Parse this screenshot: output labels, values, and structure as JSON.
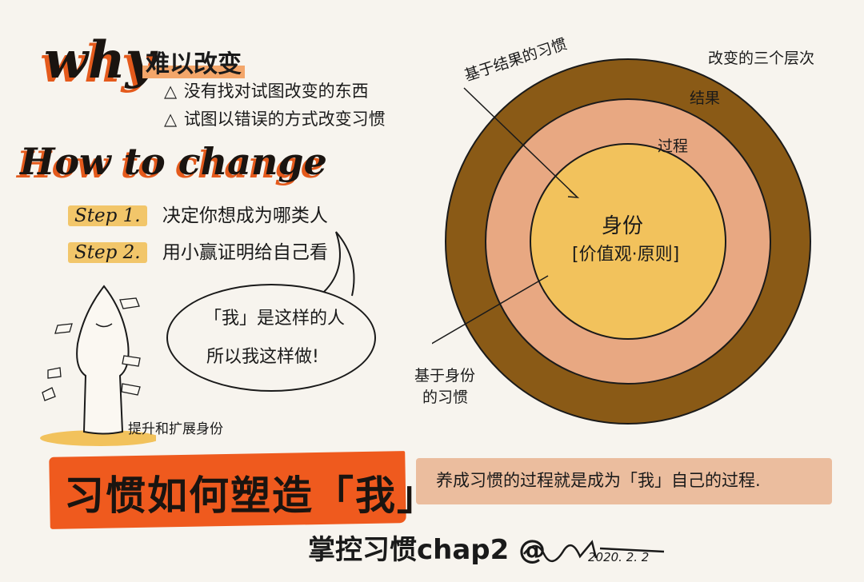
{
  "why": {
    "heading": "why",
    "title": "难以改变",
    "bullets": [
      "没有找对试图改变的东西",
      "试图以错误的方式改变习惯"
    ],
    "bullet_icon": "triangle-icon"
  },
  "how": {
    "heading": "How to change",
    "steps": [
      {
        "tag": "Step 1.",
        "text": "决定你想成为哪类人"
      },
      {
        "tag": "Step 2.",
        "text": "用小赢证明给自己看"
      }
    ]
  },
  "bubble": {
    "line1": "「我」是这样的人",
    "line2": "所以我这样做!"
  },
  "figure": {
    "caption": "提升和扩展身份"
  },
  "diagram": {
    "layers_title": "改变的三个层次",
    "outer": "结果",
    "middle": "过程",
    "core_title": "身份",
    "core_sub": "[价值观·原则]",
    "outcome_habit": "基于结果的习惯",
    "identity_habit_line1": "基于身份",
    "identity_habit_line2": "的习惯",
    "colors": {
      "outer": "#8a5a16",
      "middle": "#e8a882",
      "core": "#f2c25c"
    }
  },
  "banner": {
    "title": "习惯如何塑造「我」",
    "color": "#ef5a1e"
  },
  "strip": {
    "text": "养成习惯的过程就是成为「我」自己的过程."
  },
  "footer": {
    "text": "掌控习惯chap2 @",
    "date": "2020. 2. 2"
  }
}
